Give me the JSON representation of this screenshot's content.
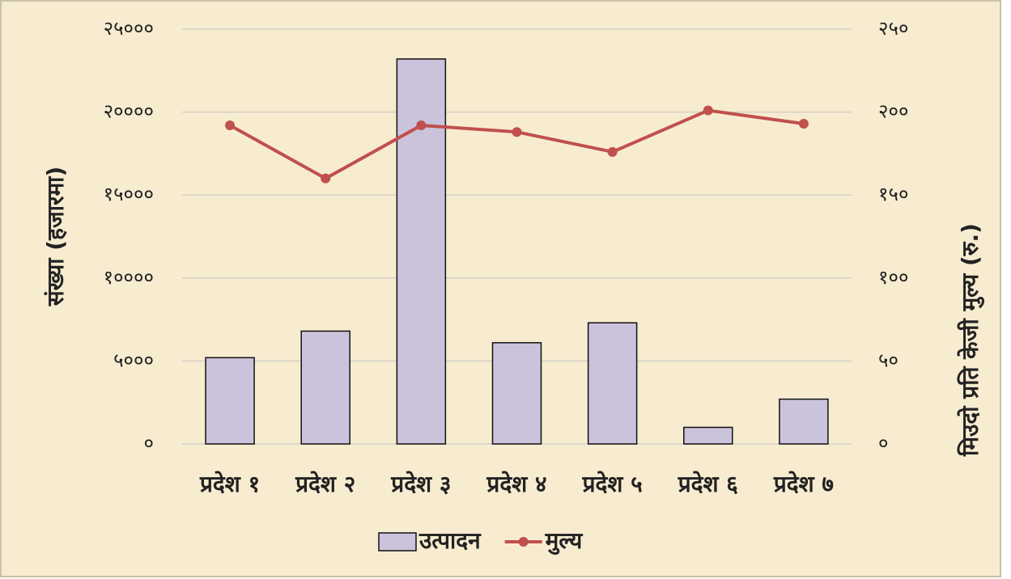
{
  "chart_data": {
    "type": "bar",
    "categories": [
      "प्रदेश १",
      "प्रदेश २",
      "प्रदेश ३",
      "प्रदेश ४",
      "प्रदेश ५",
      "प्रदेश ६",
      "प्रदेश ७"
    ],
    "series": [
      {
        "name": "उत्पादन",
        "type": "bar",
        "color": "#cbc3dc",
        "values": [
          5200,
          6800,
          23200,
          6100,
          7300,
          1000,
          2700
        ]
      },
      {
        "name": "मुल्य",
        "type": "line",
        "axis": "y2",
        "color": "#c0504d",
        "values": [
          192,
          160,
          192,
          188,
          176,
          201,
          193
        ]
      }
    ],
    "ylabel": "संख्या (हजारमा)",
    "y2label": "मिउदो प्रति केजी मुल्य (रु.)",
    "ylim": [
      0,
      25000
    ],
    "yticks": [
      {
        "value": 0,
        "label": "०"
      },
      {
        "value": 5000,
        "label": "५०००"
      },
      {
        "value": 10000,
        "label": "१००००"
      },
      {
        "value": 15000,
        "label": "१५०००"
      },
      {
        "value": 20000,
        "label": "२००००"
      },
      {
        "value": 25000,
        "label": "२५०००"
      }
    ],
    "y2lim": [
      0,
      250
    ],
    "y2ticks": [
      {
        "value": 0,
        "label": "०"
      },
      {
        "value": 50,
        "label": "५०"
      },
      {
        "value": 100,
        "label": "१००"
      },
      {
        "value": 150,
        "label": "१५०"
      },
      {
        "value": 200,
        "label": "२००"
      },
      {
        "value": 250,
        "label": "२५०"
      }
    ],
    "grid": true,
    "legend": "bottom"
  }
}
